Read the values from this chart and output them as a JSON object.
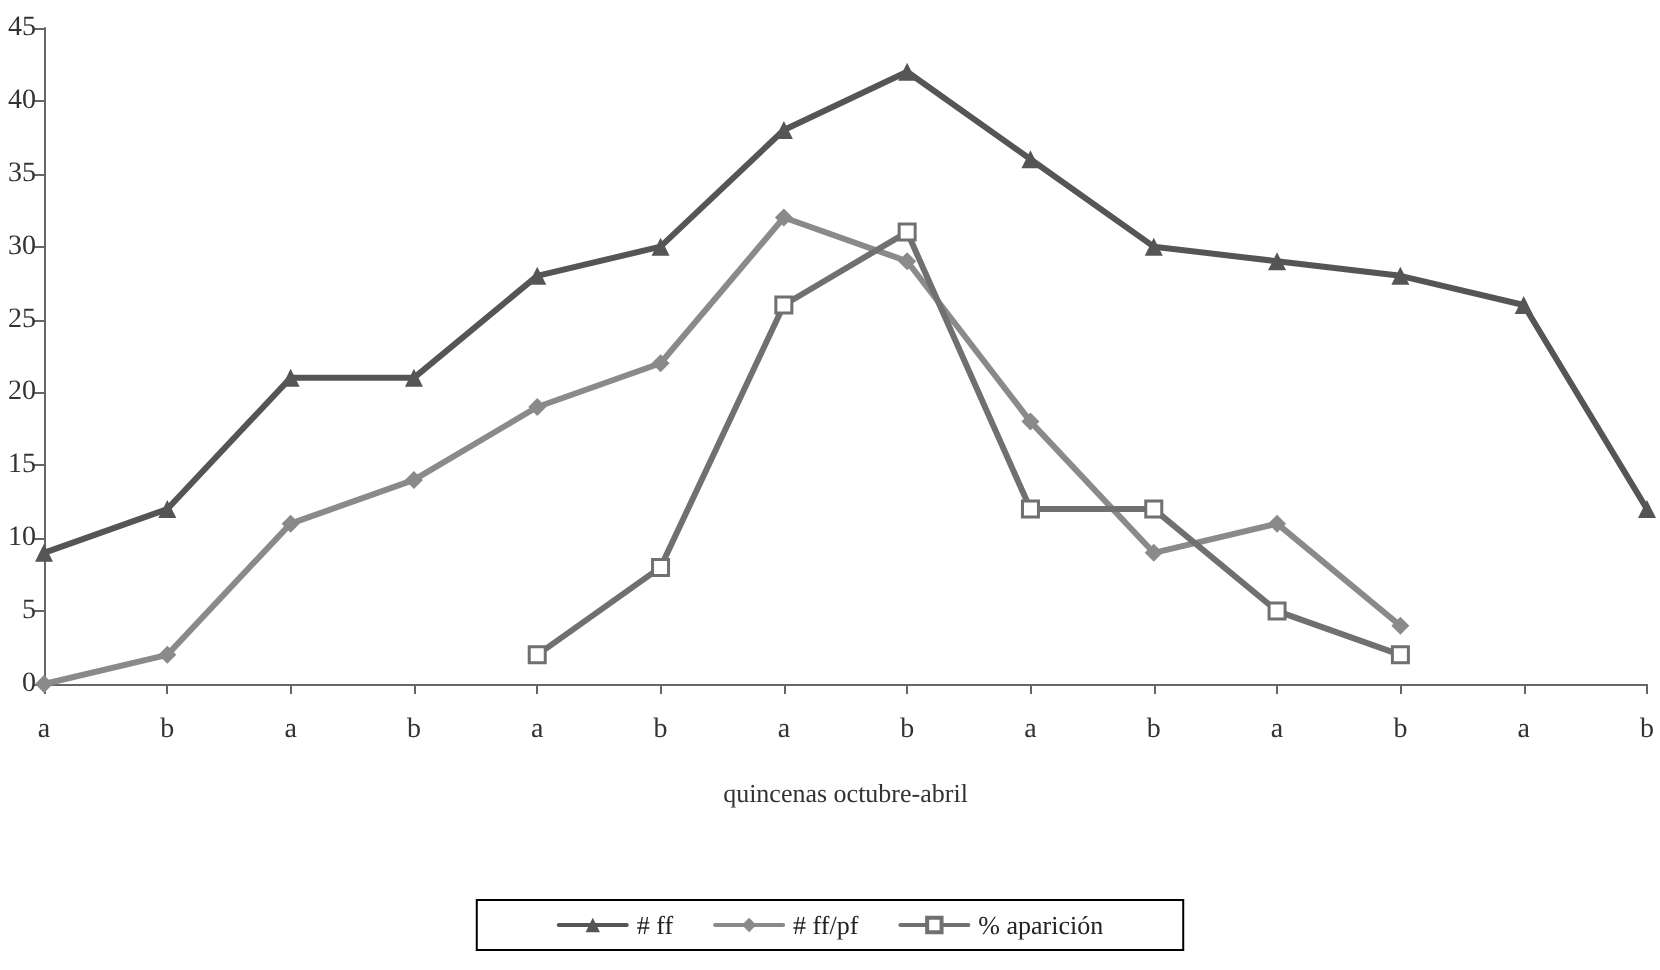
{
  "chart_data": {
    "type": "line",
    "xlabel": "quincenas octubre-abril",
    "categories": [
      "a",
      "b",
      "a",
      "b",
      "a",
      "b",
      "a",
      "b",
      "a",
      "b",
      "a",
      "b",
      "a",
      "b"
    ],
    "ylim": [
      0,
      45
    ],
    "yticks": [
      0,
      5,
      10,
      15,
      20,
      25,
      30,
      35,
      40,
      45
    ],
    "grid": false,
    "legend": "bottom",
    "series": [
      {
        "name": "# ff",
        "color": "#555555",
        "marker": "triangle",
        "values": [
          9,
          12,
          21,
          21,
          28,
          30,
          38,
          42,
          36,
          30,
          29,
          28,
          26,
          12
        ]
      },
      {
        "name": "# ff/pf",
        "color": "#8a8a8a",
        "marker": "diamond",
        "values": [
          0,
          2,
          11,
          14,
          19,
          22,
          32,
          29,
          18,
          9,
          11,
          4,
          null,
          null
        ]
      },
      {
        "name": "% aparición",
        "color": "#707070",
        "marker": "square",
        "values": [
          null,
          null,
          null,
          null,
          2,
          8,
          26,
          31,
          12,
          12,
          5,
          2,
          null,
          null
        ]
      }
    ]
  }
}
